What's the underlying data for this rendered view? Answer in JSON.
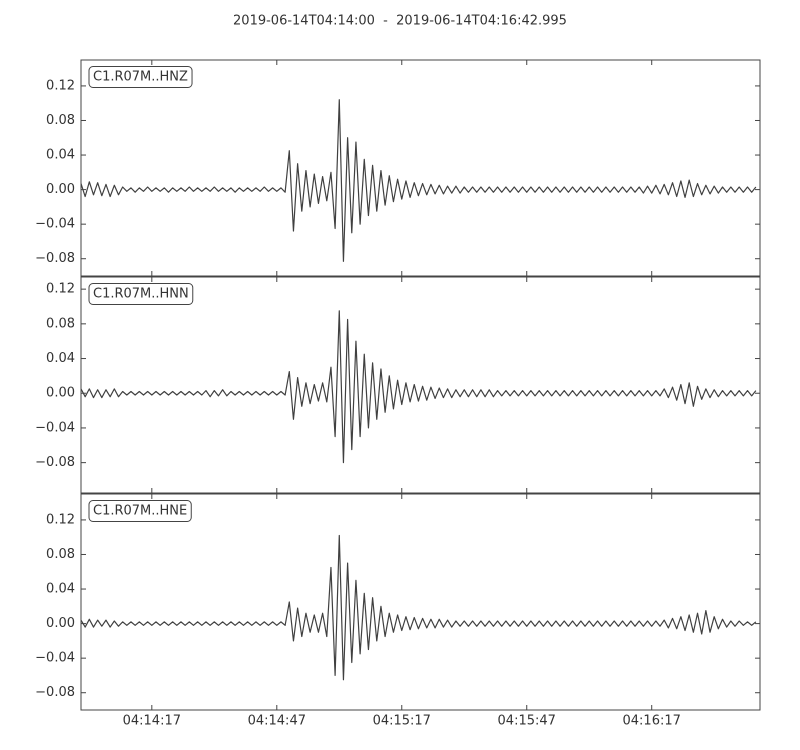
{
  "chart_data": {
    "type": "line",
    "title": "2019-06-14T04:14:00  -  2019-06-14T04:16:42.995",
    "x": [
      0,
      1,
      2,
      3,
      4,
      5,
      6,
      7,
      8,
      9,
      10,
      11,
      12,
      13,
      14,
      15,
      16,
      17,
      18,
      19,
      20,
      21,
      22,
      23,
      24,
      25,
      26,
      27,
      28,
      29,
      30,
      31,
      32,
      33,
      34,
      35,
      36,
      37,
      38,
      39,
      40,
      41,
      42,
      43,
      44,
      45,
      46,
      47,
      48,
      49,
      50,
      51,
      52,
      53,
      54,
      55,
      56,
      57,
      58,
      59,
      60,
      61,
      62,
      63,
      64,
      65,
      66,
      67,
      68,
      69,
      70,
      71,
      72,
      73,
      74,
      75,
      76,
      77,
      78,
      79,
      80,
      81,
      82,
      83,
      84,
      85,
      86,
      87,
      88,
      89,
      90,
      91,
      92,
      93,
      94,
      95,
      96,
      97,
      98,
      99,
      100,
      101,
      102,
      103,
      104,
      105,
      106,
      107,
      108,
      109,
      110,
      111,
      112,
      113,
      114,
      115,
      116,
      117,
      118,
      119,
      120,
      121,
      122,
      123,
      124,
      125,
      126,
      127,
      128,
      129,
      130,
      131,
      132,
      133,
      134,
      135,
      136,
      137,
      138,
      139,
      140,
      141,
      142,
      143,
      144,
      145,
      146,
      147,
      148,
      149,
      150,
      151,
      152,
      153,
      154,
      155,
      156,
      157,
      158,
      159,
      160,
      161,
      162
    ],
    "xlim": [
      0,
      162.995
    ],
    "xticks": [
      {
        "value": 17,
        "label": "04:14:17"
      },
      {
        "value": 47,
        "label": "04:14:47"
      },
      {
        "value": 77,
        "label": "04:15:17"
      },
      {
        "value": 107,
        "label": "04:15:47"
      },
      {
        "value": 137,
        "label": "04:16:17"
      }
    ],
    "series": [
      {
        "name": "C1.R07M..HNZ",
        "color": "#404040",
        "ylim": [
          -0.1,
          0.15
        ],
        "yticks": [
          {
            "value": -0.08,
            "label": "−0.08"
          },
          {
            "value": -0.04,
            "label": "−0.04"
          },
          {
            "value": 0,
            "label": "0.00"
          },
          0.04,
          0.08,
          0.12
        ],
        "values": [
          0.007,
          -0.008,
          0.009,
          -0.006,
          0.008,
          -0.007,
          0.006,
          -0.008,
          0.005,
          -0.006,
          0.003,
          -0.002,
          0.002,
          -0.003,
          0.002,
          -0.002,
          0.003,
          -0.002,
          0.002,
          -0.002,
          0.002,
          -0.003,
          0.002,
          -0.002,
          0.002,
          -0.002,
          0.003,
          -0.002,
          0.002,
          -0.002,
          0.002,
          -0.002,
          0.003,
          -0.002,
          0.002,
          -0.002,
          0.002,
          -0.003,
          0.002,
          -0.002,
          0.002,
          -0.002,
          0.002,
          -0.002,
          0.003,
          -0.002,
          0.002,
          -0.002,
          0.002,
          -0.003,
          0.045,
          -0.048,
          0.03,
          -0.025,
          0.022,
          -0.02,
          0.018,
          -0.016,
          0.015,
          -0.013,
          0.02,
          -0.045,
          0.104,
          -0.083,
          0.06,
          -0.05,
          0.055,
          -0.04,
          0.035,
          -0.03,
          0.028,
          -0.025,
          0.022,
          -0.018,
          0.016,
          -0.014,
          0.012,
          -0.011,
          0.01,
          -0.009,
          0.008,
          -0.007,
          0.007,
          -0.006,
          0.006,
          -0.005,
          0.005,
          -0.005,
          0.004,
          -0.004,
          0.004,
          -0.004,
          0.003,
          -0.003,
          0.003,
          -0.003,
          0.003,
          -0.003,
          0.003,
          -0.003,
          0.003,
          -0.003,
          0.003,
          -0.003,
          0.003,
          -0.003,
          0.003,
          -0.003,
          0.003,
          -0.003,
          0.003,
          -0.003,
          0.003,
          -0.003,
          0.003,
          -0.003,
          0.003,
          -0.003,
          0.003,
          -0.003,
          0.003,
          -0.003,
          0.003,
          -0.003,
          0.003,
          -0.003,
          0.003,
          -0.003,
          0.003,
          -0.003,
          0.003,
          -0.003,
          0.003,
          -0.003,
          0.003,
          -0.004,
          0.004,
          -0.004,
          0.005,
          -0.005,
          0.006,
          -0.006,
          0.008,
          -0.008,
          0.01,
          -0.009,
          0.011,
          -0.008,
          0.007,
          -0.006,
          0.005,
          -0.005,
          0.004,
          -0.004,
          0.003,
          -0.003,
          0.003,
          -0.003,
          0.003,
          -0.003,
          0.003,
          -0.003,
          0.003
        ]
      },
      {
        "name": "C1.R07M..HNN",
        "color": "#404040",
        "ylim": [
          -0.115,
          0.134
        ],
        "yticks": [
          {
            "value": -0.08,
            "label": "−0.08"
          },
          {
            "value": -0.04,
            "label": "−0.04"
          },
          {
            "value": 0,
            "label": "0.00"
          },
          0.04,
          0.08,
          0.12
        ],
        "values": [
          0.005,
          -0.004,
          0.005,
          -0.005,
          0.004,
          -0.005,
          0.004,
          -0.004,
          0.005,
          -0.004,
          0.002,
          -0.002,
          0.002,
          -0.002,
          0.002,
          -0.002,
          0.002,
          -0.002,
          0.002,
          -0.002,
          0.002,
          -0.002,
          0.002,
          -0.002,
          0.002,
          -0.002,
          0.002,
          -0.002,
          0.002,
          -0.002,
          0.003,
          -0.004,
          0.003,
          -0.003,
          0.004,
          -0.003,
          0.002,
          -0.002,
          0.002,
          -0.002,
          0.002,
          -0.002,
          0.002,
          -0.002,
          0.002,
          -0.002,
          0.002,
          -0.002,
          0.002,
          -0.002,
          0.025,
          -0.03,
          0.018,
          -0.015,
          0.012,
          -0.012,
          0.01,
          -0.009,
          0.012,
          -0.01,
          0.03,
          -0.05,
          0.095,
          -0.08,
          0.085,
          -0.065,
          0.06,
          -0.05,
          0.045,
          -0.04,
          0.035,
          -0.03,
          0.028,
          -0.022,
          0.02,
          -0.018,
          0.015,
          -0.013,
          0.012,
          -0.01,
          0.01,
          -0.009,
          0.008,
          -0.008,
          0.007,
          -0.006,
          0.006,
          -0.005,
          0.005,
          -0.005,
          0.004,
          -0.004,
          0.004,
          -0.004,
          0.004,
          -0.004,
          0.004,
          -0.004,
          0.004,
          -0.004,
          0.003,
          -0.003,
          0.003,
          -0.003,
          0.003,
          -0.003,
          0.003,
          -0.003,
          0.003,
          -0.003,
          0.003,
          -0.003,
          0.003,
          -0.003,
          0.003,
          -0.003,
          0.003,
          -0.003,
          0.003,
          -0.003,
          0.003,
          -0.003,
          0.003,
          -0.003,
          0.003,
          -0.003,
          0.003,
          -0.003,
          0.003,
          -0.003,
          0.003,
          -0.003,
          0.003,
          -0.003,
          0.003,
          -0.003,
          0.003,
          -0.003,
          0.003,
          -0.003,
          0.005,
          -0.005,
          0.007,
          -0.008,
          0.01,
          -0.012,
          0.012,
          -0.015,
          0.008,
          -0.007,
          0.005,
          -0.005,
          0.004,
          -0.004,
          0.003,
          -0.003,
          0.003,
          -0.003,
          0.003,
          -0.003,
          0.003,
          -0.003,
          0.003
        ]
      },
      {
        "name": "C1.R07M..HNE",
        "color": "#404040",
        "ylim": [
          -0.1,
          0.15
        ],
        "yticks": [
          {
            "value": -0.08,
            "label": "−0.08"
          },
          {
            "value": -0.04,
            "label": "−0.04"
          },
          {
            "value": 0,
            "label": "0.00"
          },
          0.04,
          0.08,
          0.12
        ],
        "values": [
          0.004,
          -0.004,
          0.005,
          -0.004,
          0.004,
          -0.003,
          0.004,
          -0.004,
          0.003,
          -0.003,
          0.002,
          -0.002,
          0.002,
          -0.002,
          0.002,
          -0.002,
          0.002,
          -0.002,
          0.002,
          -0.002,
          0.002,
          -0.002,
          0.002,
          -0.002,
          0.002,
          -0.002,
          0.002,
          -0.002,
          0.002,
          -0.002,
          0.002,
          -0.002,
          0.002,
          -0.002,
          0.002,
          -0.002,
          0.002,
          -0.002,
          0.002,
          -0.002,
          0.002,
          -0.002,
          0.002,
          -0.002,
          0.002,
          -0.002,
          0.002,
          -0.002,
          0.002,
          -0.002,
          0.025,
          -0.02,
          0.018,
          -0.015,
          0.012,
          -0.01,
          0.01,
          -0.01,
          0.012,
          -0.015,
          0.065,
          -0.06,
          0.102,
          -0.065,
          0.07,
          -0.045,
          0.05,
          -0.035,
          0.035,
          -0.03,
          0.03,
          -0.02,
          0.02,
          -0.015,
          0.012,
          -0.01,
          0.01,
          -0.008,
          0.008,
          -0.007,
          0.007,
          -0.006,
          0.006,
          -0.005,
          0.005,
          -0.005,
          0.005,
          -0.004,
          0.004,
          -0.004,
          0.003,
          -0.003,
          0.003,
          -0.003,
          0.003,
          -0.003,
          0.003,
          -0.003,
          0.003,
          -0.003,
          0.003,
          -0.003,
          0.003,
          -0.003,
          0.003,
          -0.003,
          0.003,
          -0.003,
          0.003,
          -0.003,
          0.003,
          -0.003,
          0.003,
          -0.003,
          0.003,
          -0.003,
          0.003,
          -0.003,
          0.003,
          -0.003,
          0.003,
          -0.003,
          0.003,
          -0.003,
          0.003,
          -0.003,
          0.003,
          -0.003,
          0.003,
          -0.003,
          0.003,
          -0.003,
          0.003,
          -0.003,
          0.003,
          -0.003,
          0.003,
          -0.003,
          0.003,
          -0.003,
          0.004,
          -0.005,
          0.006,
          -0.006,
          0.008,
          -0.008,
          0.01,
          -0.01,
          0.012,
          -0.012,
          0.015,
          -0.01,
          0.008,
          -0.006,
          0.005,
          -0.004,
          0.003,
          -0.003,
          0.003,
          -0.002,
          0.002,
          -0.002,
          0.002
        ]
      }
    ]
  }
}
